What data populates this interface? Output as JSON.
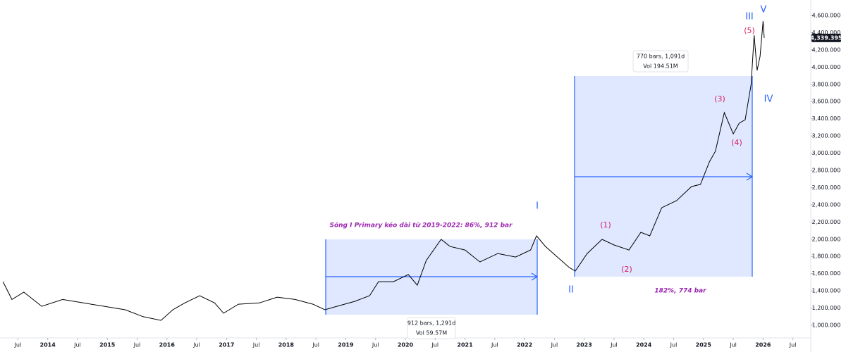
{
  "chart_data": {
    "type": "line",
    "color": "#000000",
    "x": [
      2013.25,
      2013.4,
      2013.6,
      2013.9,
      2014.25,
      2014.6,
      2014.95,
      2015.3,
      2015.6,
      2015.9,
      2016.1,
      2016.3,
      2016.55,
      2016.8,
      2016.95,
      2017.2,
      2017.55,
      2017.85,
      2018.15,
      2018.45,
      2018.65,
      2018.85,
      2019.15,
      2019.4,
      2019.55,
      2019.8,
      2020.05,
      2020.2,
      2020.35,
      2020.6,
      2020.75,
      2021.0,
      2021.25,
      2021.55,
      2021.85,
      2022.1,
      2022.2,
      2022.35,
      2022.55,
      2022.75,
      2022.85,
      2023.05,
      2023.3,
      2023.5,
      2023.75,
      2023.95,
      2024.1,
      2024.3,
      2024.55,
      2024.8,
      2024.95,
      2025.1,
      2025.2,
      2025.35,
      2025.5,
      2025.6,
      2025.7,
      2025.8,
      2025.85,
      2025.9,
      2025.95,
      2026.0,
      2026.02
    ],
    "values": [
      1507,
      1300,
      1385,
      1220,
      1300,
      1260,
      1220,
      1180,
      1100,
      1057,
      1180,
      1260,
      1344,
      1260,
      1140,
      1245,
      1260,
      1327,
      1300,
      1245,
      1180,
      1220,
      1278,
      1344,
      1507,
      1507,
      1589,
      1466,
      1753,
      1998,
      1916,
      1875,
      1736,
      1834,
      1793,
      1875,
      2039,
      1916,
      1793,
      1671,
      1630,
      1834,
      1998,
      1933,
      1875,
      2080,
      2039,
      2366,
      2448,
      2612,
      2637,
      2898,
      3021,
      3471,
      3225,
      3348,
      3389,
      3798,
      4370,
      3962,
      4125,
      4534,
      4339.395
    ],
    "last_price": {
      "value": 4339.395,
      "label": "4,339.395"
    },
    "xlim": [
      2013.2,
      2026.8
    ],
    "ylim": [
      853,
      4780
    ],
    "xticks": [
      {
        "value": 2013.5,
        "label": "Jul"
      },
      2014,
      {
        "value": 2014.5,
        "label": "Jul"
      },
      2015,
      {
        "value": 2015.5,
        "label": "Jul"
      },
      2016,
      {
        "value": 2016.5,
        "label": "Jul"
      },
      2017,
      {
        "value": 2017.5,
        "label": "Jul"
      },
      2018,
      {
        "value": 2018.5,
        "label": "Jul"
      },
      2019,
      {
        "value": 2019.5,
        "label": "Jul"
      },
      2020,
      {
        "value": 2020.5,
        "label": "Jul"
      },
      2021,
      {
        "value": 2021.5,
        "label": "Jul"
      },
      2022,
      {
        "value": 2022.5,
        "label": "Jul"
      },
      2023,
      {
        "value": 2023.5,
        "label": "Jul"
      },
      2024,
      {
        "value": 2024.5,
        "label": "Jul"
      },
      2025,
      {
        "value": 2025.5,
        "label": "Jul"
      },
      2026,
      {
        "value": 2026.5,
        "label": "Jul"
      }
    ],
    "yticks": [
      {
        "value": 1000,
        "label": "1,000.000"
      },
      {
        "value": 1200,
        "label": "1,200.000"
      },
      {
        "value": 1400,
        "label": "1,400.000"
      },
      {
        "value": 1600,
        "label": "1,600.000"
      },
      {
        "value": 1800,
        "label": "1,800.000"
      },
      {
        "value": 2000,
        "label": "2,000.000"
      },
      {
        "value": 2200,
        "label": "2,200.000"
      },
      {
        "value": 2400,
        "label": "2,400.000"
      },
      {
        "value": 2600,
        "label": "2,600.000"
      },
      {
        "value": 2800,
        "label": "2,800.000"
      },
      {
        "value": 3000,
        "label": "3,000.000"
      },
      {
        "value": 3200,
        "label": "3,200.000"
      },
      {
        "value": 3400,
        "label": "3,400.000"
      },
      {
        "value": 3600,
        "label": "3,600.000"
      },
      {
        "value": 3800,
        "label": "3,800.000"
      },
      {
        "value": 4000,
        "label": "4,000.000"
      },
      {
        "value": 4200,
        "label": "4,200.000"
      },
      {
        "value": 4400,
        "label": "4,400.000"
      },
      {
        "value": 4600,
        "label": "4,600.000"
      }
    ],
    "annotations": [
      {
        "text": "912 bars, 1,291d",
        "color": "#131722"
      },
      {
        "text": "Vol 59.57M",
        "color": "#131722"
      },
      {
        "text": "770 bars, 1,091d",
        "color": "#131722"
      },
      {
        "text": "Vol 194.51M",
        "color": "#131722"
      },
      {
        "text": "Sóng I Primary kéo dài từ 2019-2022: 86%, 912 bar",
        "color": "#9c27b0"
      },
      {
        "text": "182%, 774 bar",
        "color": "#9c27b0"
      },
      {
        "text": "I",
        "color": "#2962ff"
      },
      {
        "text": "II",
        "color": "#2962ff"
      },
      {
        "text": "III",
        "color": "#2962ff"
      },
      {
        "text": "IV",
        "color": "#2962ff"
      },
      {
        "text": "V",
        "color": "#2962ff"
      },
      {
        "text": "(1)",
        "color": "#d81b60"
      },
      {
        "text": "(2)",
        "color": "#d81b60"
      },
      {
        "text": "(3)",
        "color": "#d81b60"
      },
      {
        "text": "(4)",
        "color": "#d81b60"
      },
      {
        "text": "(5)",
        "color": "#d81b60"
      }
    ]
  }
}
